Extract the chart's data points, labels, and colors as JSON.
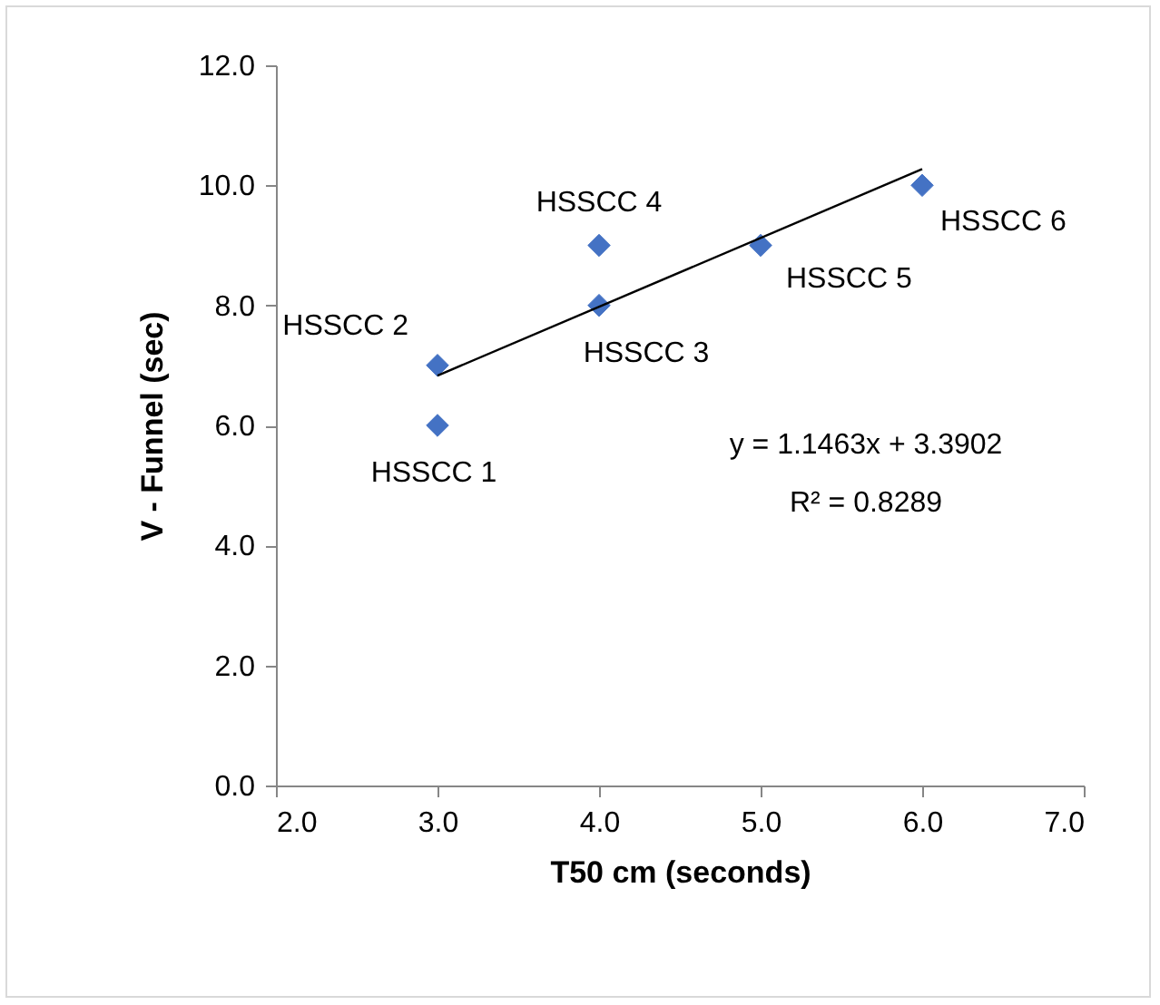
{
  "chart_data": {
    "type": "scatter",
    "xlabel": "T50 cm (seconds)",
    "ylabel": "V  - Funnel (sec)",
    "x": [
      3,
      3,
      4,
      4,
      5,
      6
    ],
    "series": [
      {
        "color": "#4472c4",
        "values": [
          6,
          7,
          8,
          9,
          9,
          10
        ]
      },
      {
        "type": "line",
        "color": "#000000",
        "marker": "none",
        "line_style": "solid",
        "x": [
          3,
          6
        ],
        "values": [
          6.83,
          10.27
        ]
      }
    ],
    "marker": "diamond",
    "xlim": [
      2,
      7
    ],
    "xticks": [
      {
        "value": 2,
        "label": "2.0"
      },
      {
        "value": 3,
        "label": "3.0"
      },
      {
        "value": 4,
        "label": "4.0"
      },
      {
        "value": 5,
        "label": "5.0"
      },
      {
        "value": 6,
        "label": "6.0"
      },
      {
        "value": 7,
        "label": "7.0"
      }
    ],
    "ylim": [
      0,
      12
    ],
    "yticks": [
      {
        "value": 0,
        "label": "0.0"
      },
      {
        "value": 2,
        "label": "2.0"
      },
      {
        "value": 4,
        "label": "4.0"
      },
      {
        "value": 6,
        "label": "6.0"
      },
      {
        "value": 8,
        "label": "8.0"
      },
      {
        "value": 10,
        "label": "10.0"
      },
      {
        "value": 12,
        "label": "12.0"
      }
    ],
    "annotations": [
      {
        "text": "HSSCC 1",
        "x": 3,
        "y": 6
      },
      {
        "text": "HSSCC 2",
        "x": 3,
        "y": 7
      },
      {
        "text": "HSSCC 3",
        "x": 4,
        "y": 8
      },
      {
        "text": "HSSCC 4",
        "x": 4,
        "y": 9
      },
      {
        "text": "HSSCC 5",
        "x": 5,
        "y": 9
      },
      {
        "text": "HSSCC 6",
        "x": 6,
        "y": 10
      },
      "y = 1.1463x + 3.3902",
      "R² = 0.8289"
    ]
  }
}
